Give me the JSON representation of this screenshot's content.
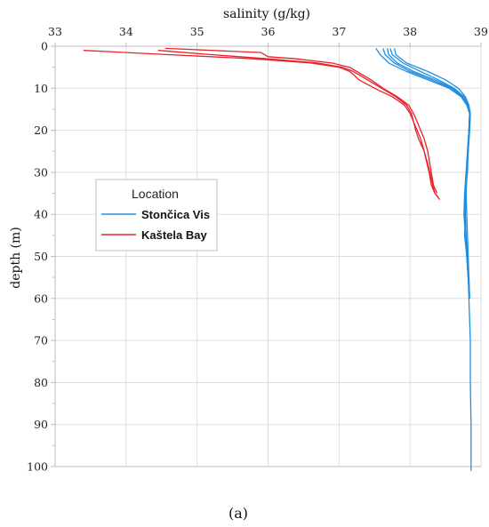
{
  "chart_data": {
    "type": "line",
    "xlabel": "salinity (g/kg)",
    "ylabel": "depth (m)",
    "xlim": [
      33,
      39
    ],
    "ylim": [
      0,
      100
    ],
    "x_axis_position": "top",
    "y_axis_inverted": true,
    "x_ticks": [
      "33",
      "34",
      "35",
      "36",
      "37",
      "38",
      "39"
    ],
    "y_ticks": [
      "0",
      "10",
      "20",
      "30",
      "40",
      "50",
      "60",
      "70",
      "80",
      "90",
      "100"
    ],
    "grid": true,
    "legend": {
      "title": "Location",
      "placement": "left-middle",
      "entries": [
        "Stončica Vis",
        "Kaštela Bay"
      ]
    },
    "caption": "(a)",
    "series": [
      {
        "name": "Stončica Vis",
        "color": "#1f8fe0",
        "profiles": [
          {
            "depth": [
              0.5,
              2,
              4,
              6,
              8,
              10,
              12,
              14,
              16,
              20,
              25,
              30,
              35,
              40,
              45,
              50,
              55,
              60,
              70,
              80,
              90,
              101
            ],
            "salinity": [
              37.52,
              37.58,
              37.7,
              37.95,
              38.25,
              38.55,
              38.72,
              38.8,
              38.84,
              38.83,
              38.82,
              38.8,
              38.79,
              38.78,
              38.77,
              38.8,
              38.82,
              38.83,
              38.85,
              38.85,
              38.86,
              38.86
            ]
          },
          {
            "depth": [
              0.5,
              2,
              4,
              6,
              8,
              10,
              12,
              14,
              16,
              20,
              25,
              30,
              35,
              40,
              45,
              50,
              55,
              60
            ],
            "salinity": [
              37.68,
              37.7,
              37.82,
              38.05,
              38.35,
              38.6,
              38.75,
              38.82,
              38.84,
              38.83,
              38.81,
              38.8,
              38.79,
              38.8,
              38.81,
              38.82,
              38.83,
              38.84
            ]
          },
          {
            "depth": [
              0.5,
              2,
              4,
              6,
              8,
              10,
              12,
              14,
              16,
              20,
              25,
              30,
              35,
              40,
              45,
              50,
              55,
              60
            ],
            "salinity": [
              37.72,
              37.75,
              37.9,
              38.15,
              38.4,
              38.62,
              38.76,
              38.82,
              38.85,
              38.84,
              38.82,
              38.81,
              38.78,
              38.77,
              38.79,
              38.81,
              38.83,
              38.84
            ]
          },
          {
            "depth": [
              0.5,
              2,
              4,
              6,
              8,
              10,
              12,
              14,
              16,
              20,
              25,
              30,
              35,
              40,
              45,
              50,
              55,
              60
            ],
            "salinity": [
              37.78,
              37.8,
              37.95,
              38.25,
              38.5,
              38.68,
              38.78,
              38.83,
              38.85,
              38.84,
              38.82,
              38.8,
              38.79,
              38.78,
              38.79,
              38.8,
              38.82,
              38.84
            ]
          },
          {
            "depth": [
              0.5,
              2,
              4,
              6,
              8,
              10,
              12,
              14,
              16,
              20,
              25,
              30,
              35,
              40,
              45,
              50,
              55
            ],
            "salinity": [
              37.62,
              37.65,
              37.78,
              38.0,
              38.3,
              38.58,
              38.74,
              38.81,
              38.84,
              38.83,
              38.81,
              38.79,
              38.77,
              38.76,
              38.78,
              38.8,
              38.82
            ]
          }
        ]
      },
      {
        "name": "Kaštela Bay",
        "color": "#e8232b",
        "profiles": [
          {
            "depth": [
              1,
              2,
              3,
              4,
              5,
              6,
              7,
              8,
              10,
              12,
              14,
              16,
              18,
              20,
              22,
              25,
              28,
              30,
              33,
              35,
              36
            ],
            "salinity": [
              33.4,
              34.6,
              35.8,
              36.6,
              37.0,
              37.15,
              37.22,
              37.28,
              37.5,
              37.75,
              37.92,
              38.0,
              38.05,
              38.1,
              38.15,
              38.2,
              38.25,
              38.28,
              38.32,
              38.35,
              38.4
            ]
          },
          {
            "depth": [
              1,
              2,
              3,
              4,
              5,
              6,
              7,
              8,
              10,
              12,
              14,
              16,
              18,
              20,
              22,
              25,
              28,
              30,
              33,
              35,
              36.5
            ],
            "salinity": [
              34.45,
              35.2,
              36.0,
              36.7,
              37.05,
              37.2,
              37.3,
              37.4,
              37.6,
              37.8,
              37.95,
              38.02,
              38.05,
              38.08,
              38.12,
              38.2,
              38.24,
              38.27,
              38.3,
              38.35,
              38.42
            ]
          },
          {
            "depth": [
              0.5,
              1.5,
              2.5,
              3,
              4,
              5,
              6,
              7,
              8,
              10,
              12,
              14,
              16,
              18,
              20,
              22,
              25,
              28,
              30,
              33,
              35
            ],
            "salinity": [
              34.55,
              35.9,
              36.0,
              36.4,
              36.9,
              37.15,
              37.25,
              37.35,
              37.45,
              37.62,
              37.82,
              37.98,
              38.05,
              38.1,
              38.15,
              38.2,
              38.25,
              38.28,
              38.3,
              38.33,
              38.38
            ]
          }
        ]
      }
    ]
  }
}
